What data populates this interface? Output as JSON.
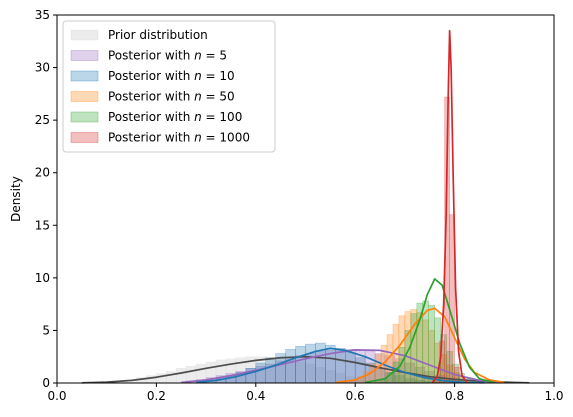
{
  "chart_data": {
    "type": "area",
    "title": "",
    "xlabel": "",
    "ylabel": "Density",
    "xlim": [
      0.0,
      1.0
    ],
    "ylim": [
      0,
      35
    ],
    "xticks": [
      "0.0",
      "0.2",
      "0.4",
      "0.6",
      "0.8",
      "1.0"
    ],
    "yticks": [
      "0",
      "5",
      "10",
      "15",
      "20",
      "25",
      "30",
      "35"
    ],
    "grid": false,
    "legend_position": "top-left",
    "series": [
      {
        "name": "Prior distribution",
        "hist_color": "#d9d9d9",
        "line_color": "#4d4d4d",
        "hist": {
          "start": 0.1,
          "bin_width": 0.02,
          "counts": [
            0.1,
            0.2,
            0.3,
            0.5,
            0.7,
            0.9,
            1.1,
            1.4,
            1.6,
            1.8,
            2.0,
            2.2,
            2.3,
            2.4,
            2.5,
            2.5,
            2.4,
            2.3,
            2.2,
            2.0,
            1.8,
            1.5,
            1.2,
            0.9,
            0.6,
            0.3,
            0.2,
            0.1,
            0.1,
            0.1,
            0.1,
            0.1,
            0.1,
            0.1,
            0.1,
            0.1,
            0.1,
            0.1,
            0.1,
            0.1
          ]
        },
        "kde": {
          "x": [
            0.05,
            0.1,
            0.15,
            0.2,
            0.25,
            0.3,
            0.35,
            0.4,
            0.45,
            0.5,
            0.55,
            0.6,
            0.65,
            0.7,
            0.75,
            0.8,
            0.85,
            0.9,
            0.95
          ],
          "y": [
            0.02,
            0.08,
            0.25,
            0.55,
            0.95,
            1.4,
            1.8,
            2.15,
            2.4,
            2.5,
            2.35,
            1.95,
            1.45,
            1.0,
            0.6,
            0.35,
            0.18,
            0.08,
            0.02
          ]
        }
      },
      {
        "name": "Posterior with n = 5",
        "name_parts": [
          "Posterior with ",
          "n",
          " = 5"
        ],
        "hist_color": "#9467bd",
        "line_color": "#9467bd",
        "hist": {
          "start": 0.26,
          "bin_width": 0.02,
          "counts": [
            0.2,
            0.3,
            0.5,
            0.7,
            0.9,
            1.1,
            1.4,
            1.6,
            1.8,
            2.1,
            2.3,
            2.6,
            2.8,
            3.0,
            3.1,
            3.2,
            3.2,
            3.1,
            3.0,
            2.8,
            2.6,
            2.3,
            1.9,
            1.5,
            1.1,
            0.7,
            0.4,
            0.2,
            0.1,
            0.05
          ]
        },
        "kde": {
          "x": [
            0.25,
            0.3,
            0.35,
            0.4,
            0.45,
            0.5,
            0.55,
            0.6,
            0.65,
            0.7,
            0.75,
            0.8,
            0.85,
            0.9
          ],
          "y": [
            0.05,
            0.3,
            0.7,
            1.2,
            1.75,
            2.3,
            2.8,
            3.15,
            3.1,
            2.6,
            1.7,
            0.8,
            0.25,
            0.05
          ]
        }
      },
      {
        "name": "Posterior with n = 10",
        "name_parts": [
          "Posterior with ",
          "n",
          " = 10"
        ],
        "hist_color": "#1f77b4",
        "line_color": "#1f77b4",
        "hist": {
          "start": 0.3,
          "bin_width": 0.02,
          "counts": [
            0.2,
            0.4,
            0.7,
            1.0,
            1.4,
            1.9,
            2.4,
            2.8,
            3.2,
            3.5,
            3.7,
            3.8,
            3.6,
            3.3,
            2.9,
            2.4,
            1.9,
            1.4,
            1.0,
            0.7,
            0.4,
            0.25,
            0.15,
            0.08,
            0.04
          ]
        },
        "kde": {
          "x": [
            0.28,
            0.32,
            0.36,
            0.4,
            0.44,
            0.48,
            0.52,
            0.55,
            0.58,
            0.62,
            0.66,
            0.7,
            0.74,
            0.78,
            0.82,
            0.86
          ],
          "y": [
            0.05,
            0.25,
            0.6,
            1.1,
            1.7,
            2.4,
            3.0,
            3.3,
            3.1,
            2.5,
            1.7,
            1.0,
            0.5,
            0.2,
            0.06,
            0.02
          ]
        }
      },
      {
        "name": "Posterior with n = 50",
        "name_parts": [
          "Posterior with ",
          "n",
          " = 50"
        ],
        "hist_color": "#ff7f0e",
        "line_color": "#ff7f0e",
        "hist": {
          "start": 0.58,
          "bin_width": 0.012,
          "counts": [
            0.1,
            0.3,
            0.6,
            1.1,
            1.8,
            2.7,
            3.6,
            4.6,
            5.6,
            6.4,
            6.8,
            7.0,
            6.7,
            6.0,
            5.0,
            3.8,
            2.7,
            1.7,
            1.0,
            0.5,
            0.2,
            0.1
          ]
        },
        "kde": {
          "x": [
            0.56,
            0.6,
            0.63,
            0.66,
            0.69,
            0.72,
            0.745,
            0.76,
            0.78,
            0.8,
            0.82,
            0.84,
            0.87,
            0.9
          ],
          "y": [
            0.05,
            0.3,
            0.9,
            2.0,
            3.6,
            5.6,
            6.9,
            7.1,
            6.3,
            4.3,
            2.3,
            1.0,
            0.3,
            0.05
          ]
        }
      },
      {
        "name": "Posterior with n = 100",
        "name_parts": [
          "Posterior with ",
          "n",
          " = 100"
        ],
        "hist_color": "#2ca02c",
        "line_color": "#2ca02c",
        "hist": {
          "start": 0.64,
          "bin_width": 0.012,
          "counts": [
            0.1,
            0.4,
            1.0,
            2.0,
            3.4,
            5.0,
            6.6,
            7.6,
            7.8,
            7.4,
            6.2,
            4.6,
            3.0,
            1.8,
            0.9,
            0.4,
            0.1
          ]
        },
        "kde": {
          "x": [
            0.62,
            0.66,
            0.69,
            0.71,
            0.73,
            0.745,
            0.76,
            0.775,
            0.79,
            0.81,
            0.83,
            0.85,
            0.88
          ],
          "y": [
            0.05,
            0.4,
            1.6,
            3.4,
            6.0,
            8.4,
            9.9,
            9.3,
            7.0,
            3.8,
            1.5,
            0.4,
            0.05
          ]
        }
      },
      {
        "name": "Posterior with n = 1000",
        "name_parts": [
          "Posterior with ",
          "n",
          " = 1000"
        ],
        "hist_color": "#d62728",
        "line_color": "#d62728",
        "hist": {
          "start": 0.76,
          "bin_width": 0.01,
          "counts": [
            0.6,
            4.0,
            27.2,
            16.0,
            1.5
          ]
        },
        "kde": {
          "x": [
            0.755,
            0.765,
            0.772,
            0.778,
            0.783,
            0.787,
            0.79,
            0.793,
            0.797,
            0.802,
            0.808,
            0.815,
            0.825
          ],
          "y": [
            0.05,
            0.6,
            2.5,
            7.5,
            16.0,
            27.0,
            33.5,
            30.0,
            20.0,
            9.0,
            3.0,
            0.7,
            0.05
          ]
        }
      }
    ]
  }
}
